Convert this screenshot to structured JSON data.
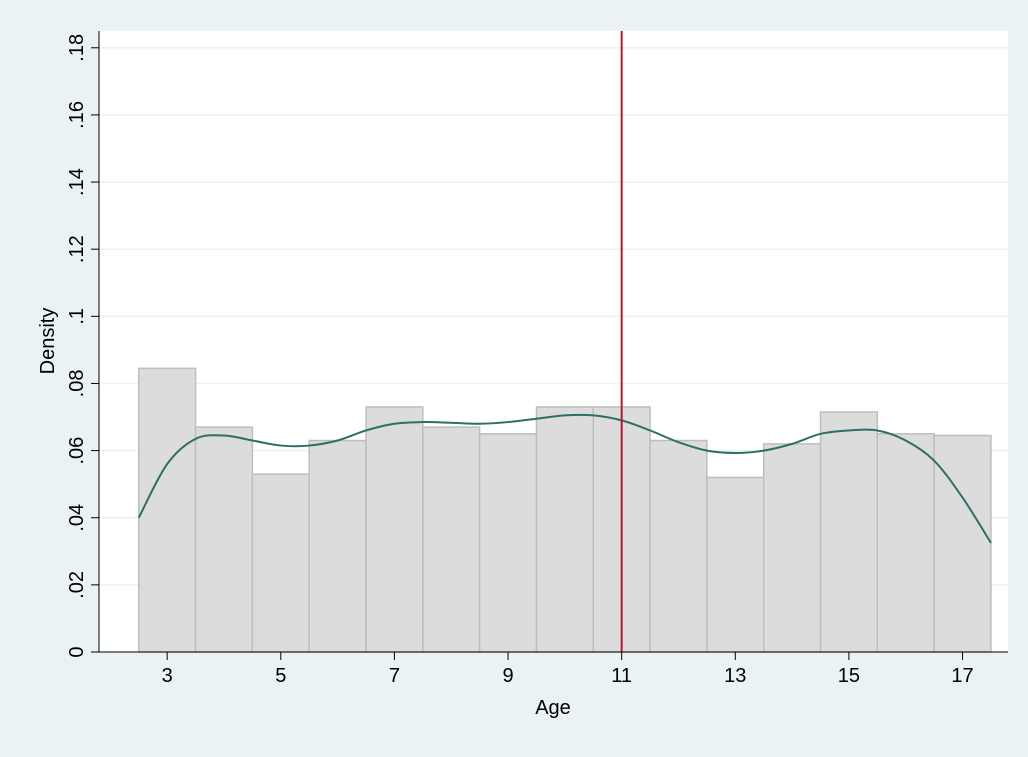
{
  "chart_data": {
    "type": "bar",
    "title": "",
    "xlabel": "Age",
    "ylabel": "Density",
    "x_ticks": [
      3,
      5,
      7,
      9,
      11,
      13,
      15,
      17
    ],
    "y_ticks": [
      0,
      0.02,
      0.04,
      0.06,
      0.08,
      0.1,
      0.12,
      0.14,
      0.16,
      0.18
    ],
    "y_tick_labels": [
      "0",
      ".02",
      ".04",
      ".06",
      ".08",
      ".1",
      ".12",
      ".14",
      ".16",
      ".18"
    ],
    "xlim": [
      1.8,
      17.8
    ],
    "ylim": [
      0,
      0.185
    ],
    "grid": "horizontal",
    "bins": [
      {
        "age": 3,
        "density": 0.0845
      },
      {
        "age": 4,
        "density": 0.067
      },
      {
        "age": 5,
        "density": 0.053
      },
      {
        "age": 6,
        "density": 0.063
      },
      {
        "age": 7,
        "density": 0.073
      },
      {
        "age": 8,
        "density": 0.067
      },
      {
        "age": 9,
        "density": 0.065
      },
      {
        "age": 10,
        "density": 0.073
      },
      {
        "age": 11,
        "density": 0.073
      },
      {
        "age": 12,
        "density": 0.063
      },
      {
        "age": 13,
        "density": 0.052
      },
      {
        "age": 14,
        "density": 0.062
      },
      {
        "age": 15,
        "density": 0.0715
      },
      {
        "age": 16,
        "density": 0.065
      },
      {
        "age": 17,
        "density": 0.0645
      }
    ],
    "density_curve": {
      "x": [
        2.5,
        3.0,
        3.5,
        4.0,
        4.5,
        5.0,
        5.5,
        6.0,
        6.5,
        7.0,
        7.5,
        8.0,
        8.5,
        9.0,
        9.5,
        10.0,
        10.5,
        11.0,
        11.5,
        12.0,
        12.5,
        13.0,
        13.5,
        14.0,
        14.5,
        15.0,
        15.5,
        16.0,
        16.5,
        17.0,
        17.5
      ],
      "y": [
        0.04,
        0.056,
        0.0635,
        0.0645,
        0.063,
        0.0615,
        0.0615,
        0.063,
        0.066,
        0.068,
        0.0685,
        0.0683,
        0.068,
        0.0685,
        0.0695,
        0.0705,
        0.0705,
        0.069,
        0.066,
        0.0625,
        0.06,
        0.0593,
        0.06,
        0.062,
        0.065,
        0.066,
        0.066,
        0.063,
        0.057,
        0.046,
        0.0325
      ]
    },
    "reference_line": {
      "x": 11
    },
    "colors": {
      "background": "#eaf2f3",
      "plot_background": "#ffffff",
      "bar_fill": "#dcdcdc",
      "bar_stroke": "#bebebe",
      "curve": "#2f6e68",
      "reference_line": "#b5172f",
      "gridline": "#eaf2f3",
      "axis": "#000000"
    }
  }
}
